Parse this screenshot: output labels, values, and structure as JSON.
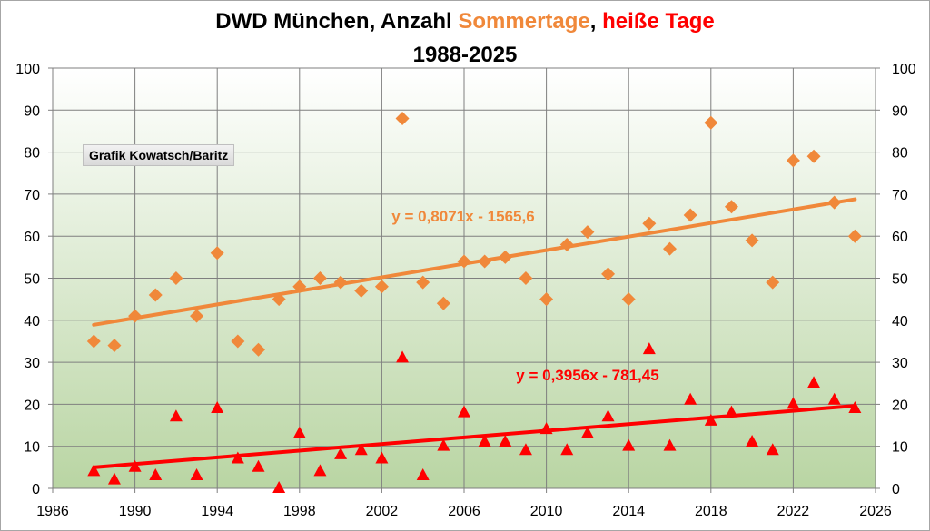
{
  "chart_data": {
    "type": "scatter",
    "title_parts": [
      "DWD München, Anzahl ",
      "Sommertage",
      ", ",
      "heiße Tage"
    ],
    "subtitle": "1988-2025",
    "credit": "Grafik Kowatsch/Baritz",
    "xlim": [
      1986,
      2026
    ],
    "ylim": [
      0,
      100
    ],
    "x_ticks": [
      "1986",
      "1990",
      "1994",
      "1998",
      "2002",
      "2006",
      "2010",
      "2014",
      "2018",
      "2022",
      "2026"
    ],
    "y_ticks": [
      "0",
      "10",
      "20",
      "30",
      "40",
      "50",
      "60",
      "70",
      "80",
      "90",
      "100"
    ],
    "grid": true,
    "colors": {
      "sommertage": "#f0883a",
      "heisse": "#ff0000",
      "grid": "#7f7f7f",
      "bg_top": "#ffffff",
      "bg_bottom": "#b9d5a3"
    },
    "x": [
      1988,
      1989,
      1990,
      1991,
      1992,
      1993,
      1994,
      1995,
      1996,
      1997,
      1998,
      1999,
      2000,
      2001,
      2002,
      2003,
      2004,
      2005,
      2006,
      2007,
      2008,
      2009,
      2010,
      2011,
      2012,
      2013,
      2014,
      2015,
      2016,
      2017,
      2018,
      2019,
      2020,
      2021,
      2022,
      2023,
      2024,
      2025
    ],
    "series": [
      {
        "name": "Sommertage",
        "marker": "diamond",
        "color": "#f0883a",
        "values": [
          35,
          34,
          41,
          46,
          50,
          41,
          56,
          35,
          33,
          45,
          48,
          50,
          49,
          47,
          48,
          88,
          49,
          44,
          54,
          54,
          55,
          50,
          45,
          58,
          61,
          51,
          45,
          63,
          57,
          65,
          87,
          67,
          59,
          49,
          78,
          79,
          68,
          60
        ],
        "trend": {
          "slope": 0.8071,
          "intercept": -1565.6,
          "label": "y = 0,8071x - 1565,6"
        }
      },
      {
        "name": "heiße Tage",
        "marker": "triangle",
        "color": "#ff0000",
        "values": [
          4,
          2,
          5,
          3,
          17,
          3,
          19,
          7,
          5,
          0,
          13,
          4,
          8,
          9,
          7,
          31,
          3,
          10,
          18,
          11,
          11,
          9,
          14,
          9,
          13,
          17,
          10,
          33,
          10,
          21,
          16,
          18,
          11,
          9,
          20,
          25,
          21,
          19
        ],
        "trend": {
          "slope": 0.3956,
          "intercept": -781.45,
          "label": "y = 0,3956x - 781,45"
        }
      }
    ]
  }
}
